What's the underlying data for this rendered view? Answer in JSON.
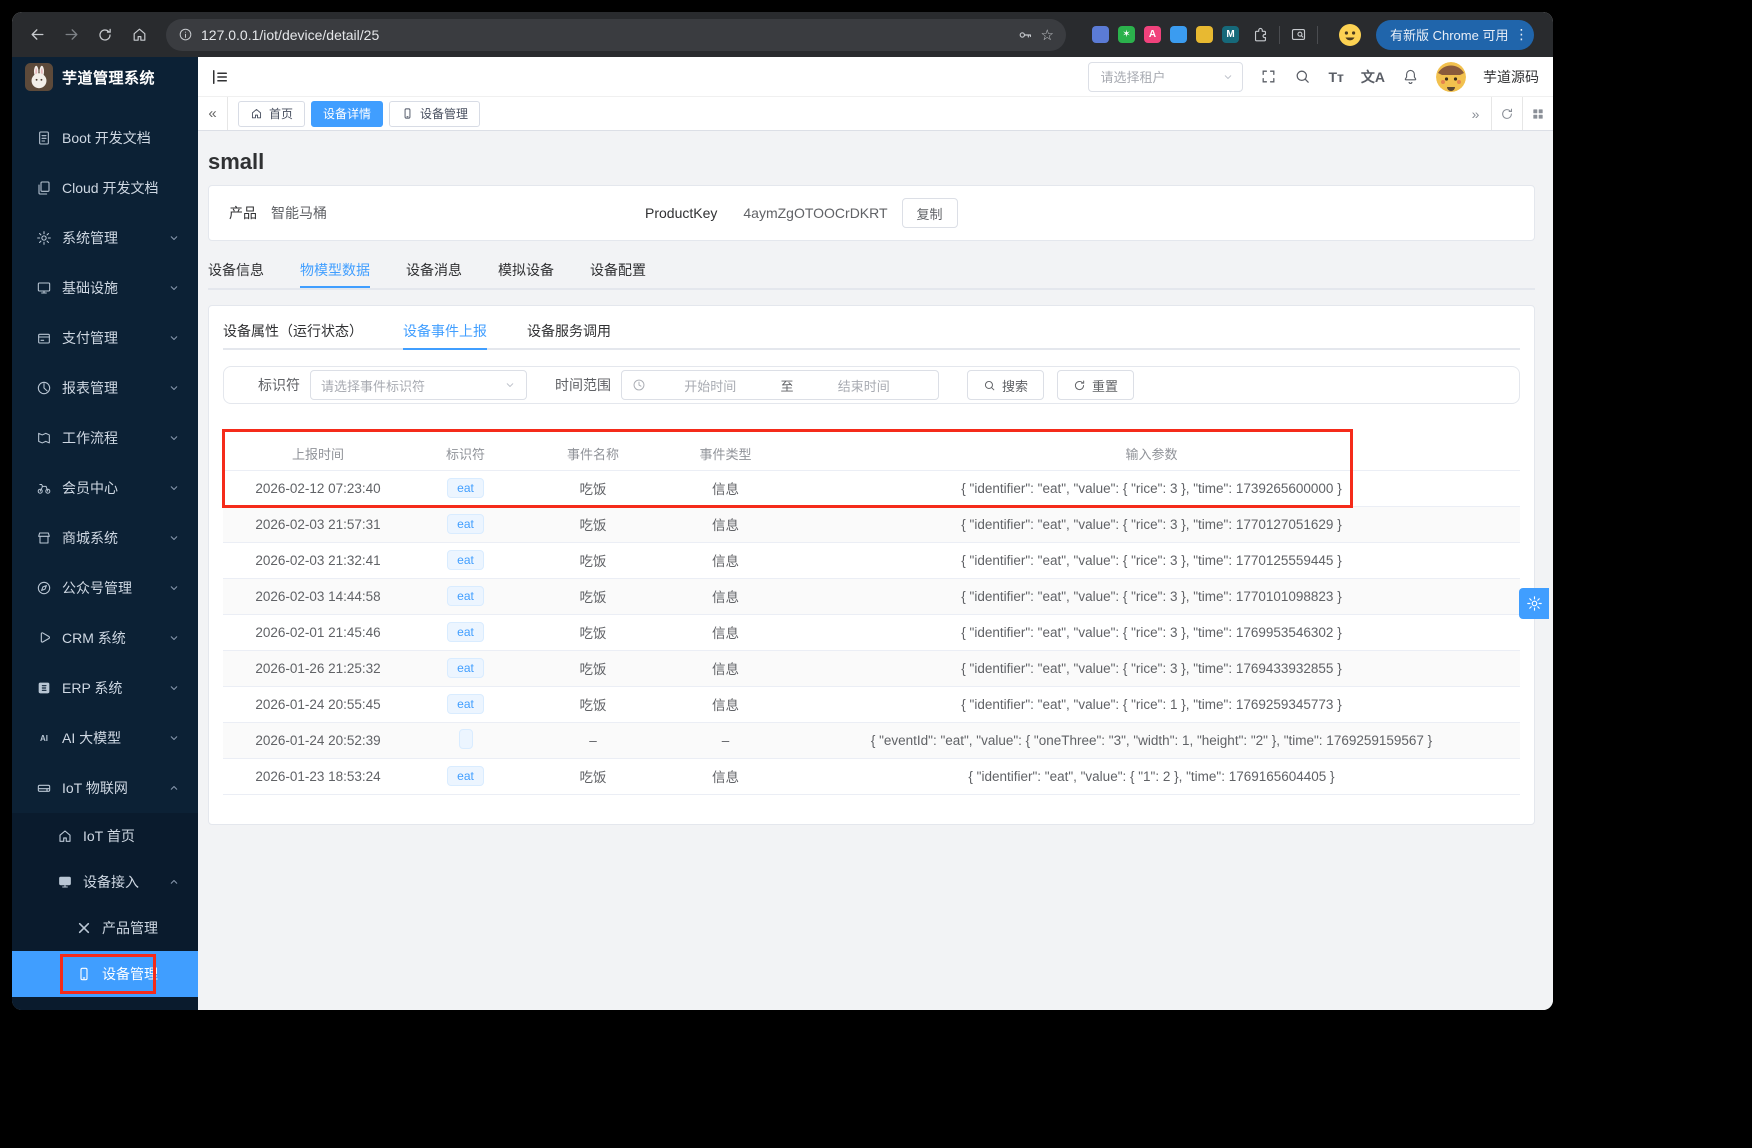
{
  "annotation": {
    "color": "#f52b1a"
  },
  "browser": {
    "url": "127.0.0.1/iot/device/detail/25",
    "update_button": "有新版 Chrome 可用",
    "menu_glyph": "⋮",
    "star_glyph": "☆",
    "extensions": [
      {
        "color": "#5b7bd5",
        "glyph": ""
      },
      {
        "color": "#2bb24c",
        "glyph": "✶"
      },
      {
        "color": "#f0427c",
        "glyph": "A"
      },
      {
        "color": "#3b9cf0",
        "glyph": ""
      },
      {
        "color": "#e8b931",
        "glyph": ""
      },
      {
        "color": "#16697a",
        "glyph": "M"
      }
    ]
  },
  "sidebar": {
    "app_title": "芋道管理系统",
    "items": [
      {
        "icon": "doc",
        "label": "Boot 开发文档",
        "level": 1
      },
      {
        "icon": "docs",
        "label": "Cloud 开发文档",
        "level": 1
      },
      {
        "icon": "gear",
        "label": "系统管理",
        "level": 1,
        "chevron": "down"
      },
      {
        "icon": "monitor",
        "label": "基础设施",
        "level": 1,
        "chevron": "down"
      },
      {
        "icon": "pay",
        "label": "支付管理",
        "level": 1,
        "chevron": "down"
      },
      {
        "icon": "chart",
        "label": "报表管理",
        "level": 1,
        "chevron": "down"
      },
      {
        "icon": "flow",
        "label": "工作流程",
        "level": 1,
        "chevron": "down"
      },
      {
        "icon": "member",
        "label": "会员中心",
        "level": 1,
        "chevron": "down"
      },
      {
        "icon": "shop",
        "label": "商城系统",
        "level": 1,
        "chevron": "down"
      },
      {
        "icon": "mp",
        "label": "公众号管理",
        "level": 1,
        "chevron": "down"
      },
      {
        "icon": "crm",
        "label": "CRM 系统",
        "level": 1,
        "chevron": "down"
      },
      {
        "icon": "erp",
        "label": "ERP 系统",
        "level": 1,
        "chevron": "down"
      },
      {
        "icon": "ai",
        "label": "AI 大模型",
        "level": 1,
        "chevron": "down"
      },
      {
        "icon": "iot",
        "label": "IoT 物联网",
        "level": 1,
        "chevron": "up"
      }
    ],
    "subitems": [
      {
        "icon": "home",
        "label": "IoT 首页",
        "level": 2
      },
      {
        "icon": "screen",
        "label": "设备接入",
        "level": 2,
        "chevron": "up"
      },
      {
        "icon": "tools",
        "label": "产品管理",
        "level": 3
      },
      {
        "icon": "phone",
        "label": "设备管理",
        "level": 3,
        "active": true
      }
    ]
  },
  "navbar": {
    "tenant_placeholder": "请选择租户",
    "fontsize_glyph": "Tт",
    "translate_glyph": "文A",
    "username": "芋道源码"
  },
  "tagbar": {
    "collapse_glyph": "«",
    "more_glyph": "»",
    "tabs": [
      {
        "icon": "home",
        "label": "首页"
      },
      {
        "label": "设备详情",
        "active": true
      },
      {
        "icon": "phone",
        "label": "设备管理"
      }
    ]
  },
  "page": {
    "title": "small",
    "product_label": "产品",
    "product_name": "智能马桶",
    "product_key_label": "ProductKey",
    "product_key": "4aymZgOTOOCrDKRT",
    "copy_button": "复制",
    "tabs": [
      {
        "label": "设备信息"
      },
      {
        "label": "物模型数据",
        "active": true
      },
      {
        "label": "设备消息"
      },
      {
        "label": "模拟设备"
      },
      {
        "label": "设备配置"
      }
    ],
    "subtabs": [
      {
        "label": "设备属性（运行状态）"
      },
      {
        "label": "设备事件上报",
        "active": true
      },
      {
        "label": "设备服务调用"
      }
    ]
  },
  "filters": {
    "identifier_label": "标识符",
    "identifier_placeholder": "请选择事件标识符",
    "time_label": "时间范围",
    "start_placeholder": "开始时间",
    "to_label": "至",
    "end_placeholder": "结束时间",
    "search_button": "搜索",
    "reset_button": "重置"
  },
  "table": {
    "columns": [
      "上报时间",
      "标识符",
      "事件名称",
      "事件类型",
      "输入参数"
    ],
    "rows": [
      {
        "time": "2026-02-12 07:23:40",
        "tag": "eat",
        "name": "吃饭",
        "type": "信息",
        "params": "{ \"identifier\": \"eat\", \"value\": { \"rice\": 3 }, \"time\": 1739265600000 }"
      },
      {
        "time": "2026-02-03 21:57:31",
        "tag": "eat",
        "name": "吃饭",
        "type": "信息",
        "params": "{ \"identifier\": \"eat\", \"value\": { \"rice\": 3 }, \"time\": 1770127051629 }"
      },
      {
        "time": "2026-02-03 21:32:41",
        "tag": "eat",
        "name": "吃饭",
        "type": "信息",
        "params": "{ \"identifier\": \"eat\", \"value\": { \"rice\": 3 }, \"time\": 1770125559445 }"
      },
      {
        "time": "2026-02-03 14:44:58",
        "tag": "eat",
        "name": "吃饭",
        "type": "信息",
        "params": "{ \"identifier\": \"eat\", \"value\": { \"rice\": 3 }, \"time\": 1770101098823 }"
      },
      {
        "time": "2026-02-01 21:45:46",
        "tag": "eat",
        "name": "吃饭",
        "type": "信息",
        "params": "{ \"identifier\": \"eat\", \"value\": { \"rice\": 3 }, \"time\": 1769953546302 }"
      },
      {
        "time": "2026-01-26 21:25:32",
        "tag": "eat",
        "name": "吃饭",
        "type": "信息",
        "params": "{ \"identifier\": \"eat\", \"value\": { \"rice\": 3 }, \"time\": 1769433932855 }"
      },
      {
        "time": "2026-01-24 20:55:45",
        "tag": "eat",
        "name": "吃饭",
        "type": "信息",
        "params": "{ \"identifier\": \"eat\", \"value\": { \"rice\": 1 }, \"time\": 1769259345773 }"
      },
      {
        "time": "2026-01-24 20:52:39",
        "tag": "",
        "name": "–",
        "type": "–",
        "params": "{ \"eventId\": \"eat\", \"value\": { \"oneThree\": \"3\", \"width\": 1, \"height\": \"2\" }, \"time\": 1769259159567 }"
      },
      {
        "time": "2026-01-23 18:53:24",
        "tag": "eat",
        "name": "吃饭",
        "type": "信息",
        "params": "{ \"identifier\": \"eat\", \"value\": { \"1\": 2 }, \"time\": 1769165604405 }"
      }
    ]
  }
}
